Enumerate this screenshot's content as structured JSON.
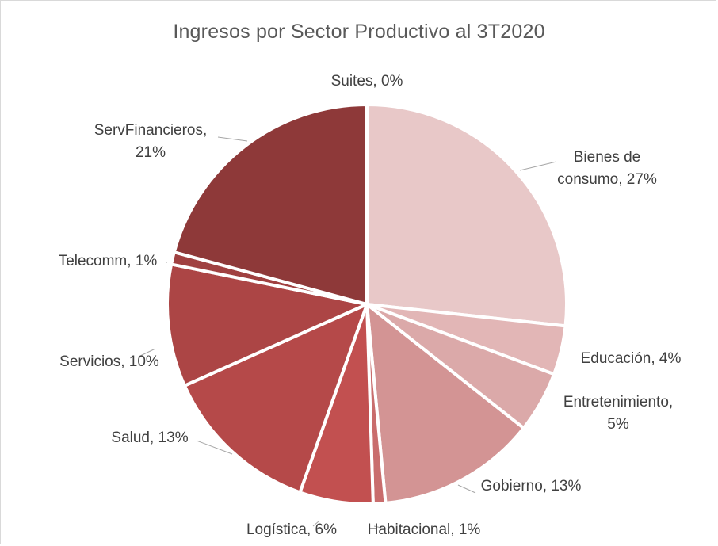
{
  "chart_data": {
    "type": "pie",
    "title": "Ingresos por Sector Productivo al 3T2020",
    "slices": [
      {
        "name": "Bienes de consumo",
        "value": 27,
        "label_lines": [
          "Bienes de",
          "consumo, 27%"
        ],
        "color": "#e8c8c8"
      },
      {
        "name": "Educación",
        "value": 4,
        "label_lines": [
          "Educación, 4%"
        ],
        "color": "#e2b6b6"
      },
      {
        "name": "Entretenimiento",
        "value": 5,
        "label_lines": [
          "Entretenimiento,",
          "5%"
        ],
        "color": "#dba9a9"
      },
      {
        "name": "Gobierno",
        "value": 13,
        "label_lines": [
          "Gobierno, 13%"
        ],
        "color": "#d39494"
      },
      {
        "name": "Habitacional",
        "value": 1,
        "label_lines": [
          "Habitacional, 1%"
        ],
        "color": "#c96d6d"
      },
      {
        "name": "Logística",
        "value": 6,
        "label_lines": [
          "Logística, 6%"
        ],
        "color": "#c25050"
      },
      {
        "name": "Salud",
        "value": 13,
        "label_lines": [
          "Salud, 13%"
        ],
        "color": "#b54949"
      },
      {
        "name": "Servicios",
        "value": 10,
        "label_lines": [
          "Servicios, 10%"
        ],
        "color": "#ac4545"
      },
      {
        "name": "Telecomm",
        "value": 1,
        "label_lines": [
          "Telecomm, 1%"
        ],
        "color": "#a04141"
      },
      {
        "name": "ServFinancieros",
        "value": 21,
        "label_lines": [
          "ServFinancieros,",
          "21%"
        ],
        "color": "#8e3939"
      },
      {
        "name": "Suites",
        "value": 0,
        "label_lines": [
          "Suites, 0%"
        ],
        "color": "#8e3939"
      }
    ]
  }
}
